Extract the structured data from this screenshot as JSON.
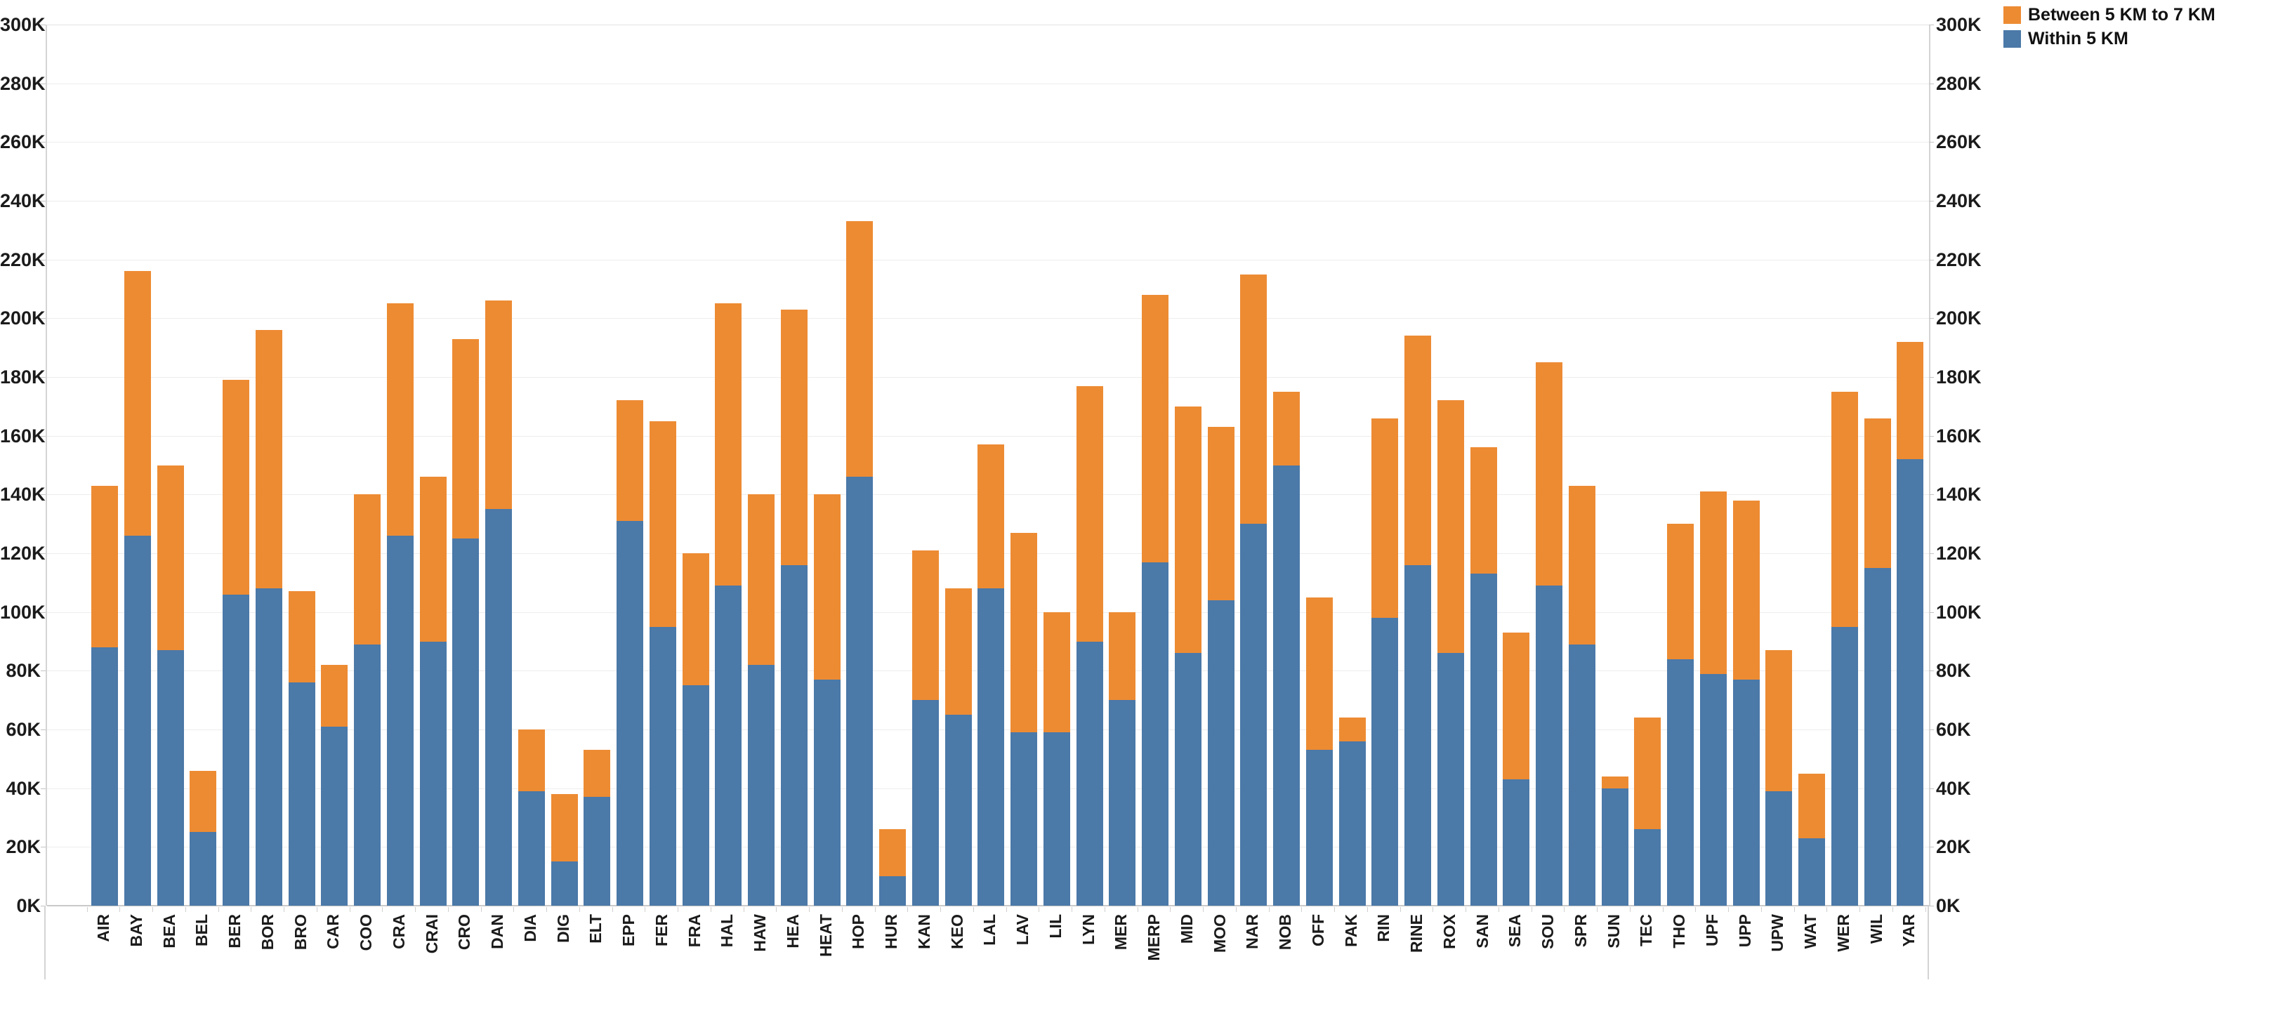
{
  "legend": {
    "items": [
      {
        "label": "Between 5 KM to 7 KM",
        "color": "#ED8B33",
        "series_key": "between_5_to_7_km"
      },
      {
        "label": "Within 5 KM",
        "color": "#4B79A8",
        "series_key": "within_5_km"
      }
    ]
  },
  "yaxis": {
    "ticks_top_down": [
      "300K",
      "280K",
      "260K",
      "240K",
      "220K",
      "200K",
      "180K",
      "160K",
      "140K",
      "120K",
      "100K",
      "80K",
      "60K",
      "40K",
      "20K",
      "0K"
    ],
    "max_value_thousands": 300,
    "step_thousands": 20,
    "shown_on_both_sides": true
  },
  "chart_data": {
    "type": "bar",
    "stacked": true,
    "title": "",
    "xlabel": "",
    "ylabel": "",
    "units": "thousands (K)",
    "ylim": [
      0,
      300
    ],
    "grid": true,
    "legend_position": "top-right",
    "categories": [
      "AIR",
      "BAY",
      "BEA",
      "BEL",
      "BER",
      "BOR",
      "BRO",
      "CAR",
      "COO",
      "CRA",
      "CRAI",
      "CRO",
      "DAN",
      "DIA",
      "DIG",
      "ELT",
      "EPP",
      "FER",
      "FRA",
      "HAL",
      "HAW",
      "HEA",
      "HEAT",
      "HOP",
      "HUR",
      "KAN",
      "KEO",
      "LAL",
      "LAV",
      "LIL",
      "LYN",
      "MER",
      "MERP",
      "MID",
      "MOO",
      "NAR",
      "NOB",
      "OFF",
      "PAK",
      "RIN",
      "RINE",
      "ROX",
      "SAN",
      "SEA",
      "SOU",
      "SPR",
      "SUN",
      "TEC",
      "THO",
      "UPF",
      "UPP",
      "UPW",
      "WAT",
      "WER",
      "WIL",
      "YAR"
    ],
    "series": [
      {
        "name": "Within 5 KM",
        "color": "#4B79A8",
        "values": [
          88,
          126,
          87,
          25,
          106,
          108,
          76,
          61,
          89,
          126,
          90,
          125,
          135,
          39,
          15,
          37,
          131,
          95,
          75,
          109,
          82,
          116,
          77,
          146,
          10,
          70,
          65,
          108,
          59,
          59,
          90,
          70,
          117,
          86,
          104,
          130,
          150,
          53,
          56,
          98,
          116,
          86,
          113,
          43,
          109,
          89,
          40,
          26,
          84,
          79,
          77,
          39,
          23,
          95,
          115,
          152
        ]
      },
      {
        "name": "Between 5 KM to 7 KM",
        "color": "#ED8B33",
        "values": [
          55,
          90,
          63,
          21,
          73,
          88,
          31,
          21,
          51,
          79,
          56,
          68,
          71,
          21,
          23,
          16,
          41,
          70,
          45,
          96,
          58,
          87,
          63,
          87,
          16,
          51,
          43,
          49,
          68,
          41,
          87,
          30,
          91,
          84,
          59,
          85,
          25,
          52,
          8,
          68,
          78,
          86,
          43,
          50,
          76,
          54,
          4,
          38,
          46,
          62,
          61,
          48,
          22,
          80,
          51,
          40
        ]
      }
    ],
    "totals_thousands": [
      143,
      216,
      150,
      46,
      179,
      196,
      107,
      82,
      140,
      205,
      146,
      193,
      206,
      60,
      38,
      53,
      172,
      165,
      120,
      205,
      140,
      203,
      140,
      233,
      26,
      121,
      108,
      157,
      127,
      100,
      177,
      100,
      208,
      170,
      163,
      215,
      175,
      105,
      64,
      166,
      194,
      172,
      156,
      93,
      185,
      143,
      44,
      64,
      130,
      141,
      138,
      87,
      45,
      175,
      166,
      192
    ]
  },
  "layout_colors": {
    "gridline": "#ededed",
    "axis_line": "#d4d4d4",
    "zero_line": "#c9c9c9",
    "text": "#1b1b1b",
    "background": "#ffffff"
  }
}
